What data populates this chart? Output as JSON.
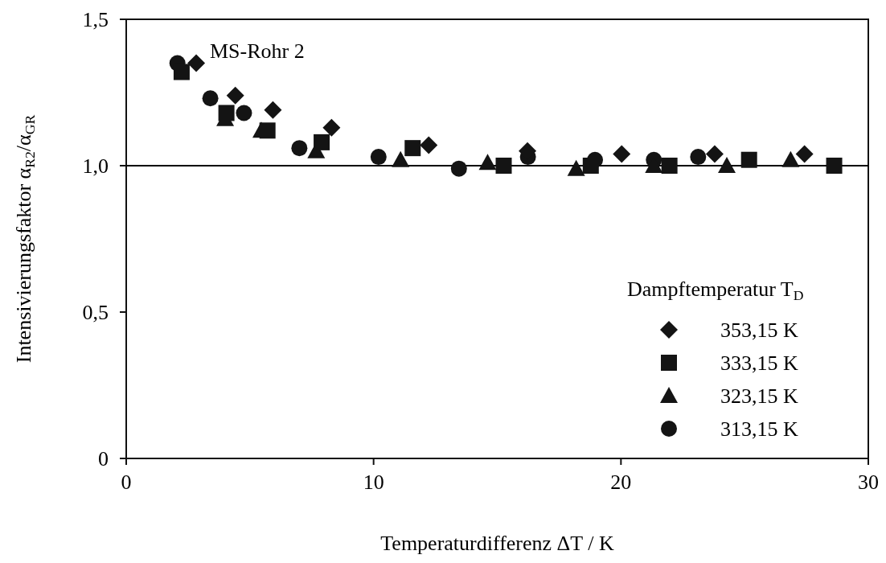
{
  "chart_data": {
    "type": "scatter",
    "xlabel": "Temperaturdifferenz ΔT  /  K",
    "ylabel": "Intensivierungsfaktor α$_{R2}$/α$_{GR}$",
    "legend_title": "Dampftemperatur T$_{D}$",
    "annotations": [
      "MS-Rohr 2"
    ],
    "xlim": [
      0,
      30
    ],
    "xticks": [
      0,
      10,
      20,
      30
    ],
    "ylim": [
      0,
      1.5
    ],
    "yticks": [
      0,
      {
        "value": 0.5,
        "label": "0,5"
      },
      {
        "value": 1,
        "label": "1,0"
      },
      {
        "value": 1.5,
        "label": "1,5"
      }
    ],
    "ref_lines": [
      {
        "axis": "y",
        "value": 1,
        "label": null,
        "color": "#000000"
      }
    ],
    "legend": "bottom right",
    "grid": false,
    "series": [
      {
        "name": "353,15 K",
        "color": "#141414",
        "marker": "diamond",
        "x": [
          2.83,
          4.41,
          5.93,
          8.3,
          12.23,
          16.22,
          20.03,
          23.79,
          27.42
        ],
        "values": [
          1.35,
          1.24,
          1.19,
          1.13,
          1.07,
          1.05,
          1.04,
          1.04,
          1.04
        ]
      },
      {
        "name": "333,15 K",
        "color": "#141414",
        "marker": "square",
        "x": [
          2.24,
          4.05,
          5.71,
          7.9,
          11.58,
          15.26,
          18.78,
          21.96,
          25.18,
          28.62
        ],
        "values": [
          1.32,
          1.18,
          1.12,
          1.08,
          1.06,
          1.0,
          1.0,
          1.0,
          1.02,
          1.0
        ]
      },
      {
        "name": "323,15 K",
        "color": "#141414",
        "marker": "triangle",
        "x": [
          4.0,
          5.46,
          7.68,
          11.09,
          14.61,
          18.19,
          21.33,
          24.28,
          26.86
        ],
        "values": [
          1.16,
          1.12,
          1.05,
          1.02,
          1.01,
          0.99,
          1.0,
          1.0,
          1.02
        ]
      },
      {
        "name": "313,15 K",
        "color": "#141414",
        "marker": "circle",
        "x": [
          2.07,
          3.4,
          4.76,
          7.0,
          10.2,
          13.45,
          16.24,
          18.95,
          21.33,
          23.12
        ],
        "values": [
          1.35,
          1.23,
          1.18,
          1.06,
          1.03,
          0.99,
          1.03,
          1.02,
          1.02,
          1.03
        ]
      }
    ]
  }
}
